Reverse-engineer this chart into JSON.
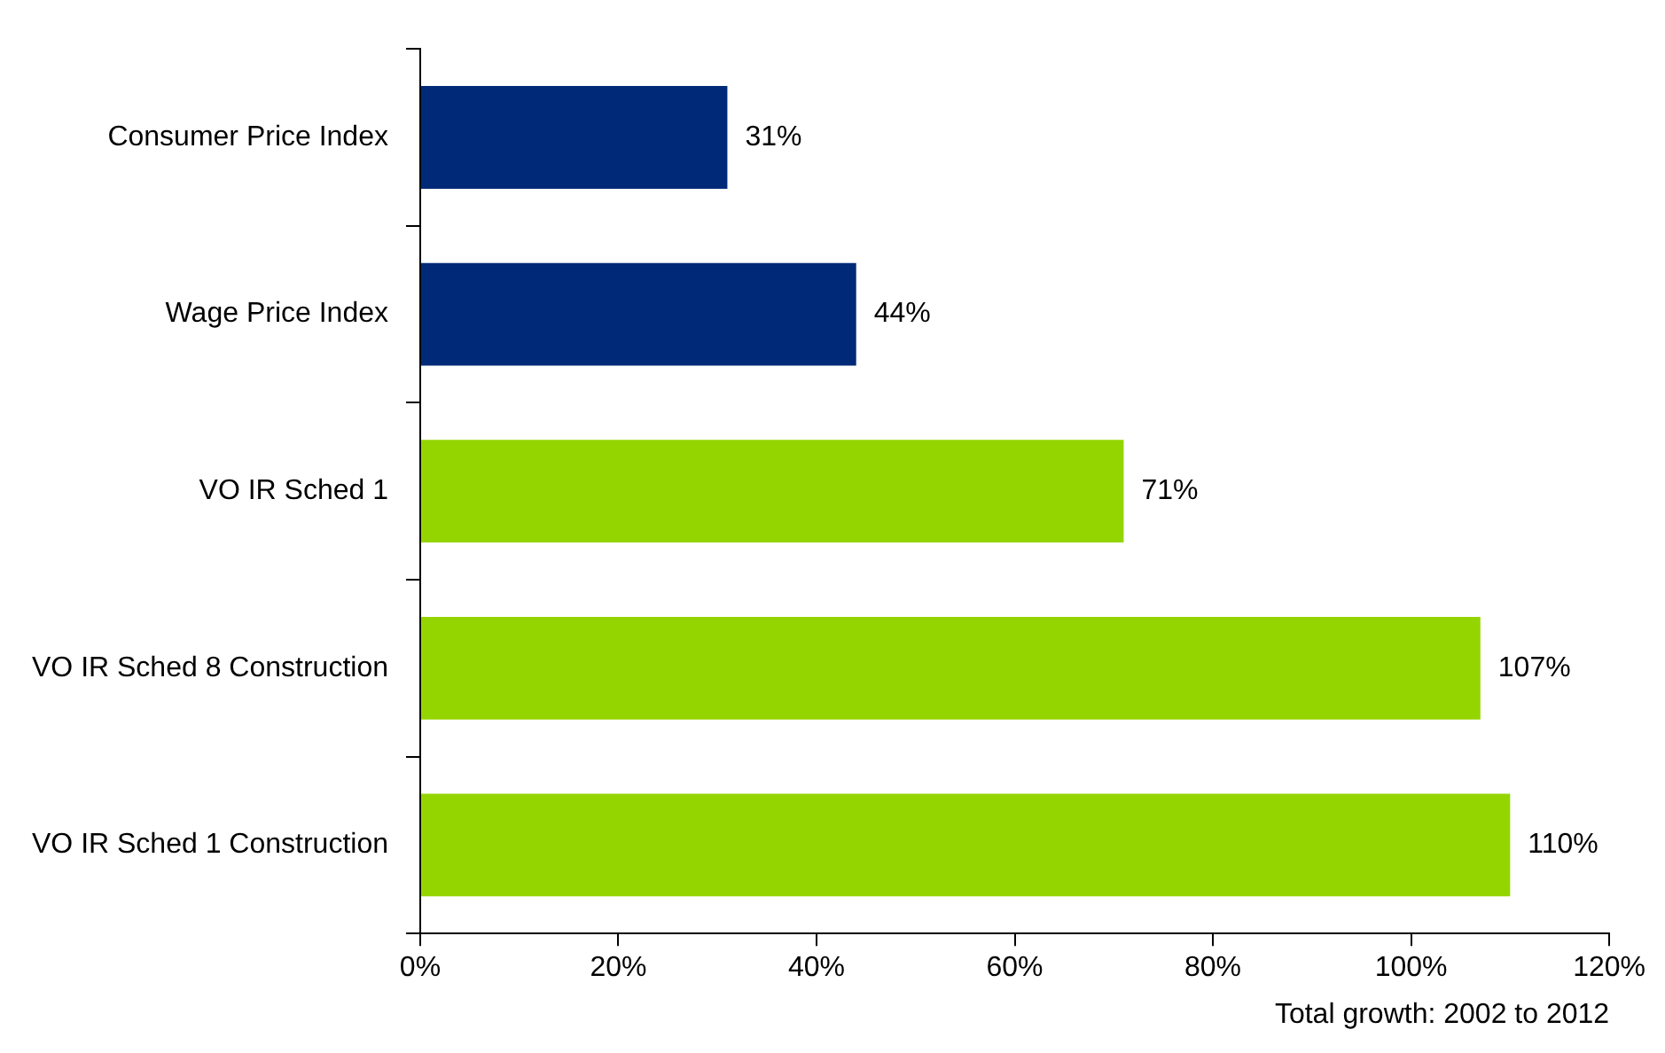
{
  "chart_data": {
    "type": "bar",
    "orientation": "horizontal",
    "categories": [
      "Consumer Price Index",
      "Wage Price Index",
      "VO IR Sched 1",
      "VO IR Sched 8 Construction",
      "VO IR Sched 1 Construction"
    ],
    "values": [
      31,
      44,
      71,
      107,
      110
    ],
    "colors": [
      "#002a77",
      "#002a77",
      "#94d500",
      "#94d500",
      "#94d500"
    ],
    "value_labels": [
      "31%",
      "44%",
      "71%",
      "107%",
      "110%"
    ],
    "xlim": [
      0,
      120
    ],
    "xticks": [
      {
        "value": 0,
        "label": "0%"
      },
      {
        "value": 20,
        "label": "20%"
      },
      {
        "value": 40,
        "label": "40%"
      },
      {
        "value": 60,
        "label": "60%"
      },
      {
        "value": 80,
        "label": "80%"
      },
      {
        "value": 100,
        "label": "100%"
      },
      {
        "value": 120,
        "label": "120%"
      }
    ],
    "xlabel": "Total growth: 2002 to 2012",
    "grid": false,
    "legend": false
  }
}
